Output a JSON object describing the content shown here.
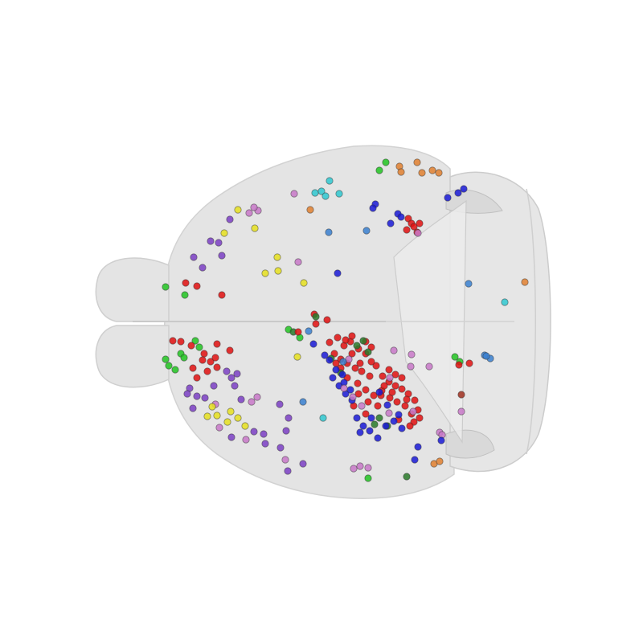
{
  "scene": {
    "background": "#ffffff",
    "brain_fill": "#e0e0e0",
    "brain_edge": "#c4c4c4",
    "marker_edge": "#333333"
  },
  "legend_colors": {
    "red": "#e01010",
    "blue": "#1a1ad6",
    "green": "#22c422",
    "dark_green": "#2a7a2a",
    "purple": "#7b3fc4",
    "violet": "#c878c8",
    "yellow": "#e6e020",
    "cyan": "#30c8d0",
    "orange": "#e08030",
    "brown": "#a03020",
    "sky_blue": "#3a80d0"
  }
}
